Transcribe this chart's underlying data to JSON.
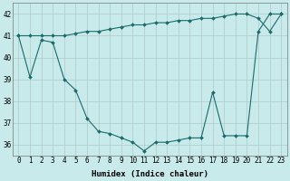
{
  "xlabel": "Humidex (Indice chaleur)",
  "bg_color": "#c8eaea",
  "grid_color": "#aaaaaa",
  "line_color": "#1a6b6b",
  "x": [
    0,
    1,
    2,
    3,
    4,
    5,
    6,
    7,
    8,
    9,
    10,
    11,
    12,
    13,
    14,
    15,
    16,
    17,
    18,
    19,
    20,
    21,
    22,
    23
  ],
  "y_upper": [
    41.0,
    41.0,
    41.0,
    41.0,
    41.0,
    41.1,
    41.2,
    41.2,
    41.3,
    41.4,
    41.5,
    41.5,
    41.6,
    41.6,
    41.7,
    41.7,
    41.8,
    41.8,
    41.9,
    42.0,
    42.0,
    41.8,
    41.2,
    42.0
  ],
  "y_lower": [
    41.0,
    39.1,
    40.8,
    40.7,
    39.0,
    38.5,
    37.2,
    36.6,
    36.5,
    36.3,
    36.1,
    35.7,
    36.1,
    36.1,
    36.2,
    36.3,
    36.3,
    38.4,
    36.4,
    36.4,
    36.4,
    41.2,
    42.0,
    42.0
  ],
  "ylim": [
    35.5,
    42.5
  ],
  "xlim": [
    -0.5,
    23.5
  ],
  "yticks": [
    36,
    37,
    38,
    39,
    40,
    41,
    42
  ],
  "xticks": [
    0,
    1,
    2,
    3,
    4,
    5,
    6,
    7,
    8,
    9,
    10,
    11,
    12,
    13,
    14,
    15,
    16,
    17,
    18,
    19,
    20,
    21,
    22,
    23
  ],
  "tick_fontsize": 5.5,
  "label_fontsize": 6.5
}
